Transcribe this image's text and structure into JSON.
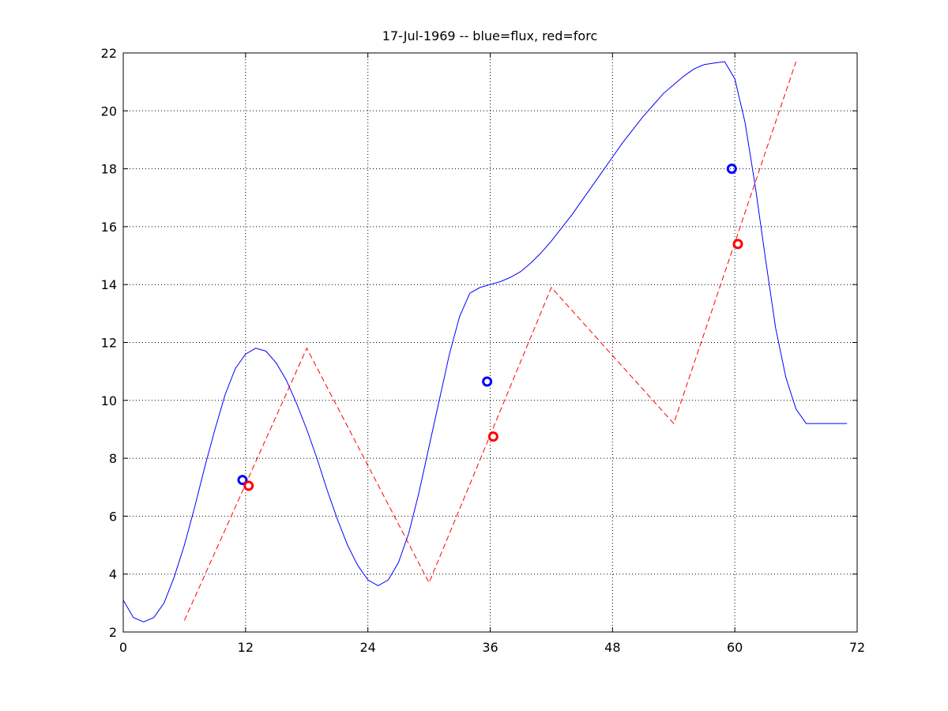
{
  "chart_data": {
    "type": "line",
    "title": "17-Jul-1969 -- blue=flux, red=forc",
    "xlabel": "",
    "ylabel": "",
    "xlim": [
      0,
      72
    ],
    "ylim": [
      2,
      22
    ],
    "xticks": [
      0,
      12,
      24,
      36,
      48,
      60,
      72
    ],
    "yticks": [
      2,
      4,
      6,
      8,
      10,
      12,
      14,
      16,
      18,
      20,
      22
    ],
    "grid": true,
    "colors": {
      "flux": "#0000ff",
      "forc": "#ff0000"
    },
    "series": [
      {
        "key": "flux",
        "style": "solid",
        "x": [
          0,
          1,
          2,
          3,
          4,
          5,
          6,
          7,
          8,
          9,
          10,
          11,
          12,
          13,
          14,
          15,
          16,
          17,
          18,
          19,
          20,
          21,
          22,
          23,
          24,
          25,
          26,
          27,
          28,
          29,
          30,
          31,
          32,
          33,
          34,
          35,
          36,
          37,
          38,
          39,
          40,
          41,
          42,
          43,
          44,
          45,
          46,
          47,
          48,
          49,
          50,
          51,
          52,
          53,
          54,
          55,
          56,
          57,
          58,
          59,
          60,
          61,
          62,
          63,
          64,
          65,
          66,
          67,
          68,
          69,
          70,
          71
        ],
        "y": [
          3.1,
          2.5,
          2.35,
          2.5,
          3.0,
          3.9,
          5.0,
          6.3,
          7.7,
          9.0,
          10.2,
          11.1,
          11.6,
          11.8,
          11.7,
          11.3,
          10.7,
          9.9,
          9.0,
          8.0,
          6.9,
          5.9,
          5.0,
          4.3,
          3.8,
          3.6,
          3.8,
          4.4,
          5.4,
          6.8,
          8.4,
          10.0,
          11.6,
          12.9,
          13.7,
          13.9,
          14.0,
          14.1,
          14.25,
          14.45,
          14.75,
          15.1,
          15.5,
          15.95,
          16.4,
          16.9,
          17.4,
          17.9,
          18.4,
          18.9,
          19.35,
          19.8,
          20.2,
          20.6,
          20.9,
          21.2,
          21.45,
          21.6,
          21.65,
          21.7,
          21.1,
          19.6,
          17.4,
          14.9,
          12.5,
          10.8,
          9.7,
          9.2,
          9.2,
          9.2,
          9.2,
          9.2
        ]
      },
      {
        "key": "forc",
        "style": "dashed",
        "x": [
          6,
          18,
          30,
          42,
          54,
          66
        ],
        "y": [
          2.4,
          11.8,
          3.7,
          13.9,
          9.2,
          21.7
        ]
      }
    ],
    "markers": [
      {
        "key": "flux",
        "x": 11.7,
        "y": 7.25
      },
      {
        "key": "forc",
        "x": 12.3,
        "y": 7.05
      },
      {
        "key": "flux",
        "x": 35.7,
        "y": 10.65
      },
      {
        "key": "forc",
        "x": 36.3,
        "y": 8.75
      },
      {
        "key": "flux",
        "x": 59.7,
        "y": 18.0
      },
      {
        "key": "forc",
        "x": 60.3,
        "y": 15.4
      }
    ]
  }
}
